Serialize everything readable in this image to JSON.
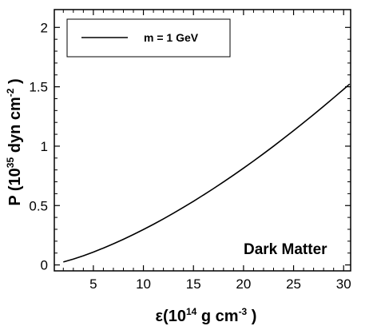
{
  "chart_data": {
    "type": "line",
    "xlabel": {
      "prefix": "ε(10",
      "sup1": "14",
      "middle": " g cm",
      "sup2": "-3",
      "suffix": " )"
    },
    "ylabel": {
      "prefix": "P (10",
      "sup1": "35",
      "middle": " dyn cm",
      "sup2": "-2",
      "suffix": " )"
    },
    "xlim": [
      1.1,
      30.7
    ],
    "ylim": [
      -0.05,
      2.15
    ],
    "x_ticks": [
      5,
      10,
      15,
      20,
      25,
      30
    ],
    "x_tick_labels": [
      "5",
      "10",
      "15",
      "20",
      "25",
      "30"
    ],
    "y_ticks": [
      0,
      0.5,
      1,
      1.5,
      2
    ],
    "y_tick_labels": [
      "0",
      "0.5",
      "1",
      "1.5",
      "2"
    ],
    "grid": false,
    "legend_position": "top-left",
    "series": [
      {
        "name": "m = 1 GeV",
        "color": "#000000",
        "x": [
          2,
          3,
          4,
          5,
          6,
          7,
          8,
          9,
          10,
          11,
          12,
          13,
          14,
          15,
          16,
          17,
          18,
          19,
          20,
          21,
          22,
          23,
          24,
          25,
          26,
          27,
          28,
          29,
          30,
          30.6
        ],
        "y": [
          0.025,
          0.049,
          0.077,
          0.108,
          0.142,
          0.178,
          0.216,
          0.256,
          0.298,
          0.342,
          0.388,
          0.436,
          0.485,
          0.536,
          0.589,
          0.643,
          0.699,
          0.756,
          0.815,
          0.875,
          0.937,
          1.0,
          1.065,
          1.131,
          1.198,
          1.266,
          1.336,
          1.407,
          1.479,
          1.523
        ]
      }
    ],
    "annotations": [
      "Dark Matter"
    ]
  }
}
